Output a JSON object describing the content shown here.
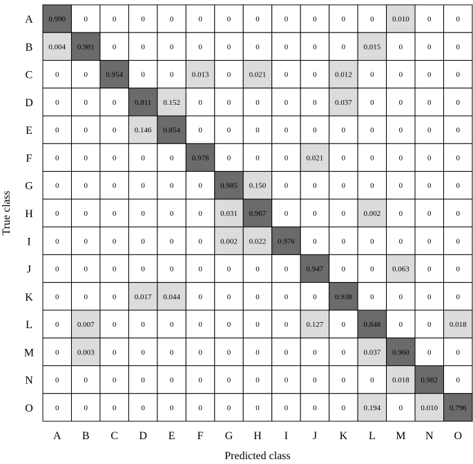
{
  "chart_data": {
    "type": "heatmap",
    "title": "",
    "xlabel": "Predicted class",
    "ylabel": "True class",
    "x_categories": [
      "A",
      "B",
      "C",
      "D",
      "E",
      "F",
      "G",
      "H",
      "I",
      "J",
      "K",
      "L",
      "M",
      "N",
      "O"
    ],
    "y_categories": [
      "A",
      "B",
      "C",
      "D",
      "E",
      "F",
      "G",
      "H",
      "I",
      "J",
      "K",
      "L",
      "M",
      "N",
      "O"
    ],
    "values": [
      [
        "0.990",
        "0",
        "0",
        "0",
        "0",
        "0",
        "0",
        "0",
        "0",
        "0",
        "0",
        "0",
        "0.010",
        "0",
        "0"
      ],
      [
        "0.004",
        "0.981",
        "0",
        "0",
        "0",
        "0",
        "0",
        "0",
        "0",
        "0",
        "0",
        "0.015",
        "0",
        "0",
        "0"
      ],
      [
        "0",
        "0",
        "0.954",
        "0",
        "0",
        "0.013",
        "0",
        "0.021",
        "0",
        "0",
        "0.012",
        "0",
        "0",
        "0",
        "0"
      ],
      [
        "0",
        "0",
        "0",
        "0.811",
        "0.152",
        "0",
        "0",
        "0",
        "0",
        "0",
        "0.037",
        "0",
        "0",
        "0",
        "0"
      ],
      [
        "0",
        "0",
        "0",
        "0.146",
        "0.854",
        "0",
        "0",
        "0",
        "0",
        "0",
        "0",
        "0",
        "0",
        "0",
        "0"
      ],
      [
        "0",
        "0",
        "0",
        "0",
        "0",
        "0.978",
        "0",
        "0",
        "0",
        "0.021",
        "0",
        "0",
        "0",
        "0",
        "0"
      ],
      [
        "0",
        "0",
        "0",
        "0",
        "0",
        "0",
        "0.985",
        "0.150",
        "0",
        "0",
        "0",
        "0",
        "0",
        "0",
        "0"
      ],
      [
        "0",
        "0",
        "0",
        "0",
        "0",
        "0",
        "0.031",
        "0.967",
        "0",
        "0",
        "0",
        "0.002",
        "0",
        "0",
        "0"
      ],
      [
        "0",
        "0",
        "0",
        "0",
        "0",
        "0",
        "0.002",
        "0.022",
        "0.976",
        "0",
        "0",
        "0",
        "0",
        "0",
        "0"
      ],
      [
        "0",
        "0",
        "0",
        "0",
        "0",
        "0",
        "0",
        "0",
        "0",
        "0.947",
        "0",
        "0",
        "0.063",
        "0",
        "0"
      ],
      [
        "0",
        "0",
        "0",
        "0.017",
        "0.044",
        "0",
        "0",
        "0",
        "0",
        "0",
        "0.938",
        "0",
        "0",
        "0",
        "0"
      ],
      [
        "0",
        "0.007",
        "0",
        "0",
        "0",
        "0",
        "0",
        "0",
        "0",
        "0.127",
        "0",
        "0.848",
        "0",
        "0",
        "0.018"
      ],
      [
        "0",
        "0.003",
        "0",
        "0",
        "0",
        "0",
        "0",
        "0",
        "0",
        "0",
        "0",
        "0.037",
        "0.960",
        "0",
        "0"
      ],
      [
        "0",
        "0",
        "0",
        "0",
        "0",
        "0",
        "0",
        "0",
        "0",
        "0",
        "0",
        "0",
        "0.018",
        "0.982",
        "0"
      ],
      [
        "0",
        "0",
        "0",
        "0",
        "0",
        "0",
        "0",
        "0",
        "0",
        "0",
        "0",
        "0.194",
        "0",
        "0.010",
        "0.796"
      ]
    ],
    "colors": {
      "diagonal": "#6b6b6b",
      "off_diagonal_nonzero": "#dcdcdc",
      "zero": "#ffffff",
      "grid": "#000000"
    },
    "grid": true,
    "legend": "none"
  }
}
